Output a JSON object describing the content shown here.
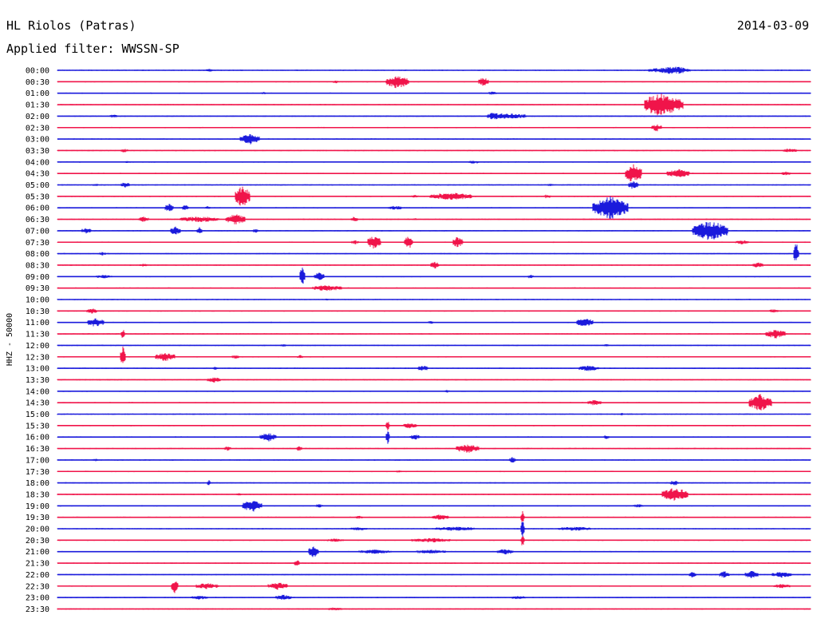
{
  "header": {
    "station": "HL Riolos (Patras)",
    "date": "2014-03-09",
    "filter": "Applied filter: WWSSN-SP"
  },
  "chart_data": {
    "type": "line",
    "title": "HL Riolos (Patras)",
    "subtitle": "Applied filter: WWSSN-SP",
    "ylabel": "HHZ - 50000",
    "colors": {
      "even": "#1a1adc",
      "odd": "#f0144a"
    },
    "rows": [
      {
        "label": "00:00",
        "events": [
          [
            262,
            1.5,
            4
          ],
          [
            835,
            3,
            22
          ],
          [
            851,
            2,
            14
          ]
        ]
      },
      {
        "label": "00:30",
        "events": [
          [
            498,
            8,
            14
          ],
          [
            606,
            5,
            6
          ],
          [
            420,
            2,
            3
          ]
        ]
      },
      {
        "label": "01:00",
        "events": [
          [
            617,
            1.5,
            5
          ],
          [
            330,
            1,
            2
          ]
        ]
      },
      {
        "label": "01:30",
        "events": [
          [
            832,
            12,
            24
          ],
          [
            820,
            4,
            10
          ]
        ]
      },
      {
        "label": "02:00",
        "events": [
          [
            635,
            3,
            24
          ],
          [
            617,
            2,
            6
          ],
          [
            142,
            1.5,
            4
          ]
        ]
      },
      {
        "label": "02:30",
        "events": [
          [
            823,
            4,
            6
          ]
        ]
      },
      {
        "label": "03:00",
        "events": [
          [
            313,
            6,
            12
          ]
        ]
      },
      {
        "label": "03:30",
        "events": [
          [
            156,
            2,
            4
          ],
          [
            990,
            2,
            8
          ]
        ]
      },
      {
        "label": "04:00",
        "events": [
          [
            594,
            1.5,
            6
          ],
          [
            160,
            1,
            3
          ]
        ]
      },
      {
        "label": "04:30",
        "events": [
          [
            794,
            12,
            10
          ],
          [
            850,
            5,
            14
          ],
          [
            985,
            2,
            5
          ]
        ]
      },
      {
        "label": "05:00",
        "events": [
          [
            794,
            5,
            6
          ],
          [
            157,
            3,
            5
          ],
          [
            120,
            1,
            3
          ],
          [
            690,
            1,
            3
          ]
        ]
      },
      {
        "label": "05:30",
        "events": [
          [
            304,
            14,
            9
          ],
          [
            565,
            4,
            26
          ],
          [
            686,
            2,
            4
          ],
          [
            520,
            1,
            4
          ]
        ]
      },
      {
        "label": "06:00",
        "events": [
          [
            765,
            14,
            22
          ],
          [
            212,
            5,
            5
          ],
          [
            232,
            3,
            4
          ],
          [
            495,
            2,
            8
          ],
          [
            260,
            1.5,
            3
          ]
        ]
      },
      {
        "label": "06:30",
        "events": [
          [
            295,
            6,
            12
          ],
          [
            180,
            3,
            6
          ],
          [
            250,
            3,
            24
          ],
          [
            444,
            3,
            4
          ],
          [
            520,
            1,
            3
          ]
        ]
      },
      {
        "label": "07:00",
        "events": [
          [
            890,
            12,
            22
          ],
          [
            220,
            5,
            6
          ],
          [
            250,
            4,
            3
          ],
          [
            108,
            3,
            6
          ],
          [
            320,
            2,
            3
          ]
        ]
      },
      {
        "label": "07:30",
        "events": [
          [
            469,
            8,
            8
          ],
          [
            512,
            8,
            5
          ],
          [
            574,
            7,
            6
          ],
          [
            445,
            2,
            4
          ],
          [
            930,
            2,
            8
          ]
        ]
      },
      {
        "label": "08:00",
        "events": [
          [
            998,
            14,
            3
          ],
          [
            128,
            2,
            4
          ]
        ]
      },
      {
        "label": "08:30",
        "events": [
          [
            545,
            4,
            5
          ],
          [
            950,
            3,
            6
          ],
          [
            180,
            1.5,
            4
          ]
        ]
      },
      {
        "label": "09:00",
        "events": [
          [
            379,
            13,
            3
          ],
          [
            400,
            5,
            6
          ],
          [
            665,
            2,
            3
          ],
          [
            130,
            1.5,
            10
          ]
        ]
      },
      {
        "label": "09:30",
        "events": [
          [
            410,
            3,
            18
          ]
        ]
      },
      {
        "label": "10:00",
        "events": [
          [
            410,
            1,
            2
          ]
        ]
      },
      {
        "label": "10:30",
        "events": [
          [
            115,
            3,
            6
          ],
          [
            970,
            2,
            5
          ]
        ]
      },
      {
        "label": "11:00",
        "events": [
          [
            120,
            5,
            10
          ],
          [
            733,
            5,
            10
          ],
          [
            540,
            1.5,
            3
          ]
        ]
      },
      {
        "label": "11:30",
        "events": [
          [
            972,
            5,
            12
          ],
          [
            154,
            6,
            2
          ]
        ]
      },
      {
        "label": "12:00",
        "events": [
          [
            355,
            1.5,
            3
          ],
          [
            760,
            1,
            3
          ]
        ]
      },
      {
        "label": "12:30",
        "events": [
          [
            154,
            14,
            3
          ],
          [
            207,
            5,
            12
          ],
          [
            295,
            2,
            4
          ],
          [
            376,
            2,
            3
          ]
        ]
      },
      {
        "label": "13:00",
        "events": [
          [
            530,
            3,
            6
          ],
          [
            738,
            3,
            12
          ],
          [
            270,
            1.5,
            3
          ]
        ]
      },
      {
        "label": "13:30",
        "events": [
          [
            268,
            3,
            8
          ]
        ]
      },
      {
        "label": "14:00",
        "events": [
          [
            560,
            1,
            3
          ]
        ]
      },
      {
        "label": "14:30",
        "events": [
          [
            953,
            10,
            14
          ],
          [
            745,
            3,
            8
          ]
        ]
      },
      {
        "label": "15:00",
        "events": [
          [
            780,
            1,
            2
          ]
        ]
      },
      {
        "label": "15:30",
        "events": [
          [
            486,
            6,
            2
          ],
          [
            514,
            3,
            8
          ]
        ]
      },
      {
        "label": "16:00",
        "events": [
          [
            336,
            5,
            10
          ],
          [
            486,
            8,
            2
          ],
          [
            520,
            3,
            6
          ],
          [
            760,
            2,
            3
          ]
        ]
      },
      {
        "label": "16:30",
        "events": [
          [
            586,
            5,
            14
          ],
          [
            285,
            2,
            4
          ],
          [
            375,
            3,
            3
          ]
        ]
      },
      {
        "label": "17:00",
        "events": [
          [
            642,
            3,
            4
          ],
          [
            120,
            1,
            3
          ]
        ]
      },
      {
        "label": "17:30",
        "events": [
          [
            500,
            1,
            3
          ]
        ]
      },
      {
        "label": "18:00",
        "events": [
          [
            262,
            3,
            2
          ],
          [
            845,
            3,
            5
          ]
        ]
      },
      {
        "label": "18:30",
        "events": [
          [
            846,
            8,
            16
          ],
          [
            300,
            1,
            3
          ]
        ]
      },
      {
        "label": "19:00",
        "events": [
          [
            316,
            7,
            12
          ],
          [
            400,
            2,
            4
          ],
          [
            800,
            1.5,
            6
          ]
        ]
      },
      {
        "label": "19:30",
        "events": [
          [
            655,
            7,
            2
          ],
          [
            552,
            3,
            10
          ],
          [
            450,
            1.5,
            4
          ]
        ]
      },
      {
        "label": "20:00",
        "events": [
          [
            655,
            14,
            2
          ],
          [
            570,
            2,
            24
          ],
          [
            720,
            2,
            20
          ],
          [
            450,
            1.5,
            10
          ]
        ]
      },
      {
        "label": "20:30",
        "events": [
          [
            655,
            8,
            2
          ],
          [
            540,
            2,
            24
          ],
          [
            420,
            1.5,
            10
          ]
        ]
      },
      {
        "label": "21:00",
        "events": [
          [
            393,
            8,
            6
          ],
          [
            633,
            3,
            10
          ],
          [
            470,
            2,
            20
          ],
          [
            540,
            2,
            18
          ]
        ]
      },
      {
        "label": "21:30",
        "events": [
          [
            372,
            4,
            3
          ]
        ]
      },
      {
        "label": "22:00",
        "events": [
          [
            908,
            4,
            6
          ],
          [
            942,
            4,
            8
          ],
          [
            868,
            3,
            4
          ],
          [
            980,
            3,
            12
          ]
        ]
      },
      {
        "label": "22:30",
        "events": [
          [
            219,
            8,
            4
          ],
          [
            348,
            4,
            12
          ],
          [
            260,
            3,
            14
          ],
          [
            980,
            2,
            10
          ]
        ]
      },
      {
        "label": "23:00",
        "events": [
          [
            355,
            3,
            10
          ],
          [
            250,
            2,
            10
          ],
          [
            650,
            2,
            8
          ]
        ]
      },
      {
        "label": "23:30",
        "events": [
          [
            420,
            1.5,
            8
          ]
        ]
      }
    ]
  }
}
